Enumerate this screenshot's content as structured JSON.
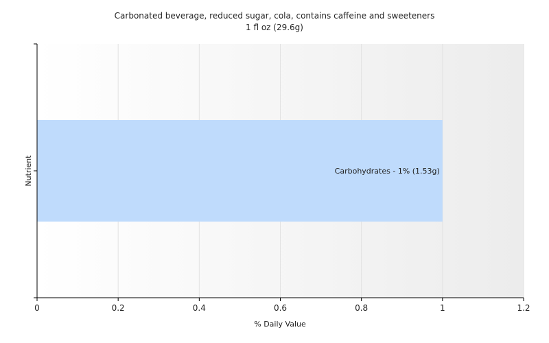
{
  "chart_data": {
    "type": "bar",
    "orientation": "horizontal",
    "title": "Carbonated beverage, reduced sugar, cola, contains caffeine and sweeteners",
    "subtitle": "1 fl oz (29.6g)",
    "xlabel": "% Daily Value",
    "ylabel": "Nutrient",
    "xlim": [
      0,
      1.2
    ],
    "xticks": [
      0,
      0.2,
      0.4,
      0.6,
      0.8,
      1,
      1.2
    ],
    "xtick_labels": [
      "0",
      "0.2",
      "0.4",
      "0.6",
      "0.8",
      "1",
      "1.2"
    ],
    "grid": true,
    "bars": [
      {
        "category": "Carbohydrates",
        "value": 1,
        "label": "Carbohydrates - 1% (1.53g)"
      }
    ],
    "colors": {
      "bar": "#bfdbfc",
      "grid": "#e2e2e2",
      "axis": "#000000",
      "plot_bg_light": "#ffffff",
      "plot_bg_dark": "#ececec"
    }
  }
}
